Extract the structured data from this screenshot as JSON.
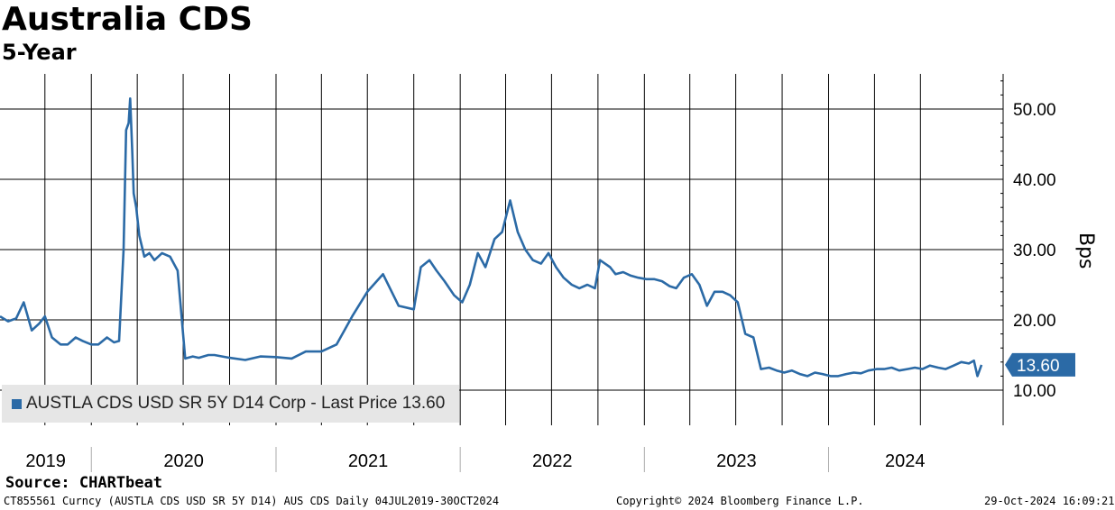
{
  "header": {
    "title": "Australia CDS",
    "subtitle": "5-Year"
  },
  "legend": {
    "label": "AUSTLA CDS USD SR 5Y D14 Corp - Last Price 13.60",
    "color": "#2b6aa6"
  },
  "last_price_tag": {
    "value": "13.60",
    "color": "#2b6aa6"
  },
  "footer": {
    "source": "Source: CHARTbeat",
    "ticker_info": "CT855561 Curncy (AUSTLA CDS USD SR 5Y D14) AUS CDS  Daily 04JUL2019-30OCT2024",
    "copyright": "Copyright© 2024 Bloomberg Finance L.P.",
    "timestamp": "29-Oct-2024 16:09:21"
  },
  "chart_data": {
    "type": "line",
    "title": "Australia CDS",
    "subtitle": "5-Year",
    "ylabel": "Bps",
    "ylim": [
      5,
      55
    ],
    "y_ticks": [
      "10.00",
      "20.00",
      "30.00",
      "40.00",
      "50.00"
    ],
    "x_year_labels": [
      "2019",
      "2020",
      "2021",
      "2022",
      "2023",
      "2024"
    ],
    "grid": true,
    "series": [
      {
        "name": "AUSTLA CDS USD SR 5Y D14 Corp",
        "color": "#2b6aa6",
        "x": [
          "2019-07-04",
          "2019-07-20",
          "2019-08-05",
          "2019-08-20",
          "2019-09-05",
          "2019-09-20",
          "2019-10-01",
          "2019-10-15",
          "2019-11-01",
          "2019-11-15",
          "2019-12-01",
          "2019-12-15",
          "2020-01-01",
          "2020-01-15",
          "2020-02-01",
          "2020-02-15",
          "2020-02-25",
          "2020-03-05",
          "2020-03-10",
          "2020-03-15",
          "2020-03-18",
          "2020-03-22",
          "2020-03-25",
          "2020-03-30",
          "2020-04-05",
          "2020-04-15",
          "2020-04-25",
          "2020-05-05",
          "2020-05-20",
          "2020-06-05",
          "2020-06-20",
          "2020-07-05",
          "2020-07-20",
          "2020-08-01",
          "2020-08-10",
          "2020-08-20",
          "2020-09-01",
          "2020-10-01",
          "2020-11-01",
          "2020-12-01",
          "2021-01-01",
          "2021-02-01",
          "2021-03-01",
          "2021-04-01",
          "2021-05-01",
          "2021-06-01",
          "2021-07-01",
          "2021-08-01",
          "2021-09-01",
          "2021-10-01",
          "2021-10-15",
          "2021-11-01",
          "2021-11-15",
          "2021-12-01",
          "2021-12-20",
          "2022-01-05",
          "2022-01-20",
          "2022-02-05",
          "2022-02-20",
          "2022-03-10",
          "2022-03-25",
          "2022-04-10",
          "2022-04-25",
          "2022-05-10",
          "2022-05-25",
          "2022-06-10",
          "2022-06-25",
          "2022-07-10",
          "2022-07-25",
          "2022-08-10",
          "2022-08-25",
          "2022-09-10",
          "2022-09-25",
          "2022-10-05",
          "2022-10-15",
          "2022-10-25",
          "2022-11-05",
          "2022-11-20",
          "2022-12-05",
          "2022-12-20",
          "2023-01-05",
          "2023-01-20",
          "2023-02-05",
          "2023-02-20",
          "2023-03-05",
          "2023-03-20",
          "2023-04-05",
          "2023-04-20",
          "2023-05-05",
          "2023-05-20",
          "2023-06-05",
          "2023-06-20",
          "2023-07-05",
          "2023-07-20",
          "2023-08-05",
          "2023-08-20",
          "2023-09-05",
          "2023-09-20",
          "2023-10-05",
          "2023-10-20",
          "2023-11-05",
          "2023-11-20",
          "2023-12-05",
          "2023-12-20",
          "2024-01-05",
          "2024-01-20",
          "2024-02-05",
          "2024-02-20",
          "2024-03-05",
          "2024-03-20",
          "2024-04-05",
          "2024-04-20",
          "2024-05-05",
          "2024-05-20",
          "2024-06-05",
          "2024-06-20",
          "2024-07-05",
          "2024-07-20",
          "2024-08-05",
          "2024-08-20",
          "2024-09-05",
          "2024-09-20",
          "2024-10-05",
          "2024-10-15",
          "2024-10-22",
          "2024-10-30"
        ],
        "values": [
          20.5,
          19.8,
          20.2,
          22.5,
          18.5,
          19.5,
          20.5,
          17.5,
          16.5,
          16.5,
          17.5,
          17.0,
          16.5,
          16.5,
          17.5,
          16.8,
          17.0,
          30.0,
          47.0,
          48.0,
          51.5,
          44.0,
          38.0,
          36.0,
          32.0,
          29.0,
          29.5,
          28.5,
          29.5,
          29.0,
          27.0,
          14.5,
          14.8,
          14.6,
          14.8,
          15.0,
          15.0,
          14.6,
          14.3,
          14.8,
          14.7,
          14.5,
          15.5,
          15.5,
          16.5,
          20.5,
          24.0,
          26.5,
          22.0,
          21.5,
          27.5,
          28.5,
          27.0,
          25.5,
          23.5,
          22.5,
          25.0,
          29.5,
          27.5,
          31.5,
          32.5,
          37.0,
          32.5,
          30.0,
          28.5,
          28.0,
          29.5,
          27.5,
          26.0,
          25.0,
          24.5,
          25.0,
          24.5,
          28.5,
          28.0,
          27.5,
          26.5,
          26.8,
          26.3,
          26.0,
          25.8,
          25.8,
          25.5,
          24.8,
          24.5,
          26.0,
          26.5,
          25.0,
          22.0,
          24.0,
          24.0,
          23.5,
          22.5,
          18.0,
          17.5,
          13.0,
          13.2,
          12.8,
          12.5,
          12.8,
          12.3,
          12.0,
          12.5,
          12.3,
          12.0,
          12.0,
          12.3,
          12.5,
          12.4,
          12.8,
          13.0,
          13.0,
          13.2,
          12.8,
          13.0,
          13.2,
          13.0,
          13.5,
          13.2,
          13.0,
          13.5,
          14.0,
          13.8,
          14.2,
          12.0,
          13.6
        ]
      }
    ]
  }
}
